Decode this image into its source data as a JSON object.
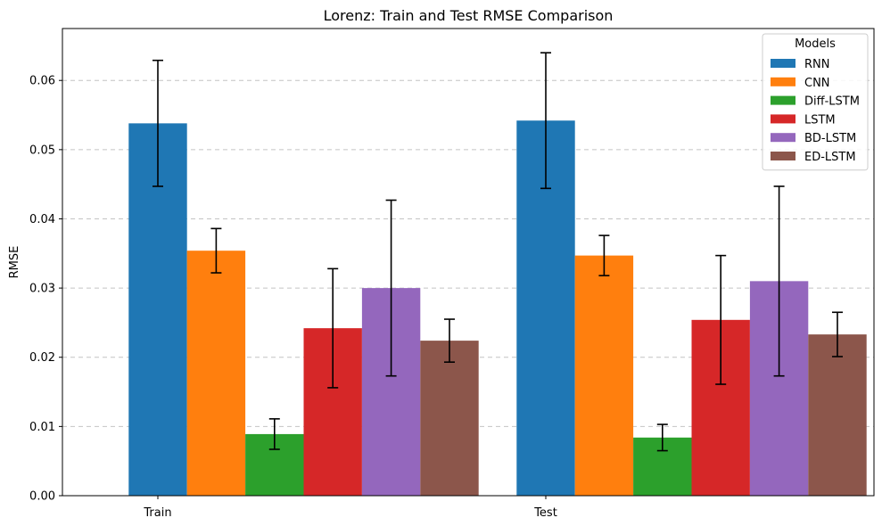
{
  "chart_data": {
    "type": "bar",
    "title": "Lorenz: Train and Test RMSE Comparison",
    "xlabel": "",
    "ylabel": "RMSE",
    "categories": [
      "Train",
      "Test"
    ],
    "ylim": [
      0,
      0.0675
    ],
    "yticks": [
      0.0,
      0.01,
      0.02,
      0.03,
      0.04,
      0.05,
      0.06
    ],
    "ytick_labels": [
      "0.00",
      "0.01",
      "0.02",
      "0.03",
      "0.04",
      "0.05",
      "0.06"
    ],
    "grid": "y-dashed",
    "legend": {
      "title": "Models",
      "position": "top-right"
    },
    "series": [
      {
        "name": "RNN",
        "color": "#1f77b4",
        "values": [
          0.0538,
          0.0542
        ],
        "errors": [
          0.0091,
          0.0098
        ]
      },
      {
        "name": "CNN",
        "color": "#ff7f0e",
        "values": [
          0.0354,
          0.0347
        ],
        "errors": [
          0.0032,
          0.0029
        ]
      },
      {
        "name": "Diff-LSTM",
        "color": "#2ca02c",
        "values": [
          0.0089,
          0.0084
        ],
        "errors": [
          0.0022,
          0.0019
        ]
      },
      {
        "name": "LSTM",
        "color": "#d62728",
        "values": [
          0.0242,
          0.0254
        ],
        "errors": [
          0.0086,
          0.0093
        ]
      },
      {
        "name": "BD-LSTM",
        "color": "#9467bd",
        "values": [
          0.03,
          0.031
        ],
        "errors": [
          0.0127,
          0.0137
        ]
      },
      {
        "name": "ED-LSTM",
        "color": "#8c564b",
        "values": [
          0.0224,
          0.0233
        ],
        "errors": [
          0.0031,
          0.0032
        ]
      }
    ]
  }
}
